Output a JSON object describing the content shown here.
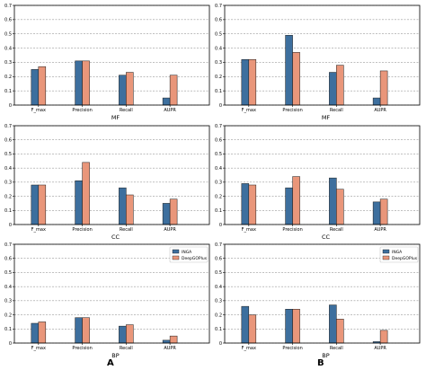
{
  "colors": {
    "inga": "#3d6f9e",
    "deepgoplus": "#e9967a",
    "grid": "#9a9a9a"
  },
  "legend": {
    "inga": "INGA",
    "deepgoplus": "DeepGOPlus"
  },
  "panel_labels": {
    "a": "A",
    "b": "B"
  },
  "chart_data": [
    {
      "type": "bar",
      "xlabel": "MF",
      "categories": [
        "F_max",
        "Precision",
        "Recall",
        "AUPR"
      ],
      "ylim": [
        0,
        0.7
      ],
      "yticks": [
        "0",
        "0.1",
        "0.2",
        "0.3",
        "0.4",
        "0.5",
        "0.6",
        "0.7"
      ],
      "grid": true,
      "legend": null,
      "series": [
        {
          "name": "INGA",
          "values": [
            0.25,
            0.31,
            0.21,
            0.05
          ]
        },
        {
          "name": "DeepGOPlus",
          "values": [
            0.27,
            0.31,
            0.23,
            0.21
          ]
        }
      ]
    },
    {
      "type": "bar",
      "xlabel": "MF",
      "categories": [
        "F_max",
        "Precision",
        "Recall",
        "AUPR"
      ],
      "ylim": [
        0,
        0.7
      ],
      "yticks": [
        "0",
        "0.1",
        "0.2",
        "0.3",
        "0.4",
        "0.5",
        "0.6",
        "0.7"
      ],
      "grid": true,
      "legend": null,
      "series": [
        {
          "name": "INGA",
          "values": [
            0.32,
            0.49,
            0.23,
            0.05
          ]
        },
        {
          "name": "DeepGOPlus",
          "values": [
            0.32,
            0.37,
            0.28,
            0.24
          ]
        }
      ]
    },
    {
      "type": "bar",
      "xlabel": "CC",
      "categories": [
        "F_max",
        "Precision",
        "Recall",
        "AUPR"
      ],
      "ylim": [
        0,
        0.7
      ],
      "yticks": [
        "0",
        "0.1",
        "0.2",
        "0.3",
        "0.4",
        "0.5",
        "0.6",
        "0.7"
      ],
      "grid": true,
      "legend": null,
      "series": [
        {
          "name": "INGA",
          "values": [
            0.28,
            0.31,
            0.26,
            0.15
          ]
        },
        {
          "name": "DeepGOPlus",
          "values": [
            0.28,
            0.44,
            0.21,
            0.18
          ]
        }
      ]
    },
    {
      "type": "bar",
      "xlabel": "CC",
      "categories": [
        "F_max",
        "Precision",
        "Recall",
        "AUPR"
      ],
      "ylim": [
        0,
        0.7
      ],
      "yticks": [
        "0",
        "0.1",
        "0.2",
        "0.3",
        "0.4",
        "0.5",
        "0.6",
        "0.7"
      ],
      "grid": true,
      "legend": null,
      "series": [
        {
          "name": "INGA",
          "values": [
            0.29,
            0.26,
            0.33,
            0.16
          ]
        },
        {
          "name": "DeepGOPlus",
          "values": [
            0.28,
            0.34,
            0.25,
            0.18
          ]
        }
      ]
    },
    {
      "type": "bar",
      "xlabel": "BP",
      "categories": [
        "F_max",
        "Precision",
        "Recall",
        "AUPR"
      ],
      "ylim": [
        0,
        0.7
      ],
      "yticks": [
        "0",
        "0.1",
        "0.2",
        "0.3",
        "0.4",
        "0.5",
        "0.6",
        "0.7"
      ],
      "grid": true,
      "legend": "top-right",
      "series": [
        {
          "name": "INGA",
          "values": [
            0.14,
            0.18,
            0.12,
            0.02
          ]
        },
        {
          "name": "DeepGOPlus",
          "values": [
            0.15,
            0.18,
            0.13,
            0.05
          ]
        }
      ]
    },
    {
      "type": "bar",
      "xlabel": "BP",
      "categories": [
        "F_max",
        "Precision",
        "Recall",
        "AUPR"
      ],
      "ylim": [
        0,
        0.7
      ],
      "yticks": [
        "0",
        "0.1",
        "0.2",
        "0.3",
        "0.4",
        "0.5",
        "0.6",
        "0.7"
      ],
      "grid": true,
      "legend": "top-right",
      "series": [
        {
          "name": "INGA",
          "values": [
            0.26,
            0.24,
            0.27,
            0.01
          ]
        },
        {
          "name": "DeepGOPlus",
          "values": [
            0.2,
            0.24,
            0.17,
            0.09
          ]
        }
      ]
    }
  ]
}
